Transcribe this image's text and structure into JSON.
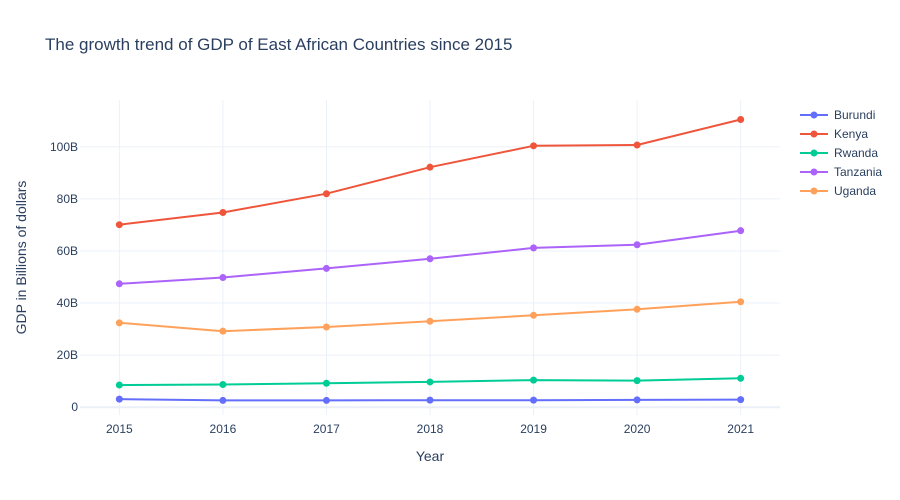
{
  "chart_data": {
    "type": "line",
    "title": "The growth trend of GDP of East African Countries since 2015",
    "xlabel": "Year",
    "ylabel": "GDP in Billions of dollars",
    "x": [
      2015,
      2016,
      2017,
      2018,
      2019,
      2020,
      2021
    ],
    "x_tick_labels": [
      "2015",
      "2016",
      "2017",
      "2018",
      "2019",
      "2020",
      "2021"
    ],
    "y_ticks": [
      0,
      20,
      40,
      60,
      80,
      100
    ],
    "y_tick_labels": [
      "0",
      "20B",
      "40B",
      "60B",
      "80B",
      "100B"
    ],
    "ylim": [
      -3,
      118
    ],
    "xlim": [
      2014.62,
      2021.38
    ],
    "grid": true,
    "legend_position": "top-right",
    "series": [
      {
        "name": "Burundi",
        "color": "#636efa",
        "values": [
          3.1,
          2.6,
          2.6,
          2.7,
          2.7,
          2.8,
          2.9
        ]
      },
      {
        "name": "Kenya",
        "color": "#ef553b",
        "values": [
          70.1,
          74.8,
          82.0,
          92.2,
          100.4,
          100.7,
          110.5
        ]
      },
      {
        "name": "Rwanda",
        "color": "#00cc96",
        "values": [
          8.5,
          8.7,
          9.2,
          9.7,
          10.4,
          10.2,
          11.1
        ]
      },
      {
        "name": "Tanzania",
        "color": "#ab63fa",
        "values": [
          47.4,
          49.8,
          53.3,
          57.0,
          61.2,
          62.4,
          67.8
        ]
      },
      {
        "name": "Uganda",
        "color": "#ffa15a",
        "values": [
          32.4,
          29.2,
          30.8,
          33.0,
          35.3,
          37.6,
          40.5
        ]
      }
    ]
  }
}
